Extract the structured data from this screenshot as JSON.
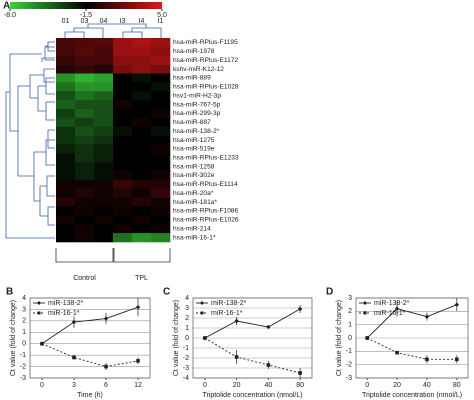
{
  "chart_data": [
    {
      "type": "heatmap",
      "panel": "A",
      "columns": [
        "01",
        "03",
        "04",
        "I3",
        "I4",
        "I1"
      ],
      "rows": [
        "hsa-miR-RPlus-F1195",
        "hsa-miR-1978",
        "hsa-miR-RPlus-E1172",
        "kshv-miR-K12-12",
        "hsa-miR-889",
        "hsa-miR-RPlus-E1028",
        "hsv1-miR-H2-3p",
        "hsa-miR-767-5p",
        "hsa-miR-299-3p",
        "hsa-miR-887",
        "hsa-miR-138-2*",
        "hsa-miR-1275",
        "hsa-miR-519e",
        "hsa-miR-RPlus-E1233",
        "hsa-miR-1258",
        "hsa-miR-302e",
        "hsa-miR-RPlus-E1114",
        "hsa-miR-20a*",
        "hsa-miR-181a*",
        "hsa-miR-RPlus-F1086",
        "hsa-miR-RPlus-E1026",
        "hsa-miR-214",
        "hsa-miR-16-1*"
      ],
      "values": [
        [
          0.5,
          0.8,
          1,
          3,
          3.5,
          3
        ],
        [
          0.5,
          1,
          0.5,
          3,
          3,
          2.5
        ],
        [
          0,
          0.5,
          0.5,
          2.5,
          2.5,
          3
        ],
        [
          -0.5,
          0,
          -0.5,
          2,
          2.5,
          2
        ],
        [
          -6,
          -7,
          -6.5,
          -1.5,
          -2,
          -1.5
        ],
        [
          -5,
          -6,
          -6,
          -1.5,
          -1.5,
          -2
        ],
        [
          -4,
          -5,
          -4.5,
          -1.5,
          -2,
          -1.5
        ],
        [
          -4.5,
          -4,
          -4,
          -1,
          -1.5,
          -1.5
        ],
        [
          -3.5,
          -4.5,
          -4,
          -1.5,
          -1.5,
          -1
        ],
        [
          -4,
          -3.5,
          -4,
          -1.5,
          -1,
          -1.5
        ],
        [
          -3,
          -4,
          -3.5,
          -2,
          -1.5,
          -2
        ],
        [
          -3,
          -3.5,
          -3,
          -1.5,
          -1.5,
          -1.5
        ],
        [
          -2.5,
          -3,
          -2.5,
          -1.5,
          -1.5,
          -1
        ],
        [
          -2,
          -3,
          -2.5,
          -1.5,
          -1.5,
          -1.5
        ],
        [
          -2,
          -2.5,
          -2,
          -1.5,
          -1.5,
          -1.5
        ],
        [
          -2,
          -2.5,
          -2,
          -1,
          -1.5,
          -1
        ],
        [
          -1,
          -1,
          -1,
          0,
          -0.5,
          -0.5
        ],
        [
          -1,
          -0.5,
          -1,
          -0.5,
          -1,
          0
        ],
        [
          -0.5,
          -1,
          -1,
          -1,
          -0.5,
          -1
        ],
        [
          -1.5,
          -1,
          -1.5,
          -1,
          -1.5,
          -1
        ],
        [
          -1,
          -1.5,
          -1,
          -1.5,
          -1,
          -1.5
        ],
        [
          -1.5,
          -1,
          -1.5,
          -1,
          -1.5,
          -1
        ],
        [
          -1.5,
          -1,
          -1.5,
          -5,
          -6,
          -5.5
        ]
      ],
      "clim": [
        -8,
        5
      ],
      "colormap": [
        "#3ad13a",
        "#000000",
        "#e01818"
      ],
      "colorbar_ticks": [
        {
          "value": -8,
          "label": "-8.0"
        },
        -1.5,
        {
          "value": 5,
          "label": "5.0"
        }
      ],
      "groups": [
        "Control",
        "TPL"
      ]
    },
    {
      "type": "line",
      "panel": "B",
      "x_label": "Time (h)",
      "y_label": "Ct value (fold of change)",
      "categories": [
        "0",
        "3",
        "6",
        "12"
      ],
      "ylim": [
        -3,
        4
      ],
      "yticks": [
        -3,
        -2,
        -1,
        0,
        1,
        2,
        3,
        4
      ],
      "grid": true,
      "legend": "upper left",
      "series": [
        {
          "name": "miR-138-2*",
          "color": "#222222",
          "style": "solid",
          "values": [
            0,
            1.9,
            2.2,
            3.2
          ],
          "errors": [
            0,
            0.5,
            0.5,
            0.8
          ]
        },
        {
          "name": "miR-16-1*",
          "color": "#222222",
          "style": "dashed",
          "values": [
            0,
            -1.2,
            -2.0,
            -1.5
          ],
          "errors": [
            0,
            0.2,
            0.3,
            0.3
          ]
        }
      ]
    },
    {
      "type": "line",
      "panel": "C",
      "x_label": "Triptolide concentration (nmol/L)",
      "y_label": "Ct value (fold of change)",
      "categories": [
        "0",
        "20",
        "40",
        "80"
      ],
      "ylim": [
        -4,
        4
      ],
      "yticks": [
        -4,
        -3,
        -2,
        -1,
        0,
        1,
        2,
        3,
        4
      ],
      "grid": true,
      "legend": "upper left",
      "series": [
        {
          "name": "miR-138-2*",
          "color": "#222222",
          "style": "solid",
          "values": [
            0,
            1.7,
            1.1,
            2.9
          ],
          "errors": [
            0,
            0.4,
            0,
            0.4
          ]
        },
        {
          "name": "miR-16-1*",
          "color": "#222222",
          "style": "dashed",
          "values": [
            0,
            -1.9,
            -2.7,
            -3.5
          ],
          "errors": [
            0,
            0.7,
            0.4,
            0.5
          ]
        }
      ]
    },
    {
      "type": "line",
      "panel": "D",
      "x_label": "Triptolide concentration (nmol/L)",
      "y_label": "Ct value (fold of change)",
      "categories": [
        "0",
        "20",
        "40",
        "80"
      ],
      "ylim": [
        -3,
        3
      ],
      "yticks": [
        -3,
        -2,
        -1,
        0,
        1,
        2,
        3
      ],
      "grid": true,
      "legend": "upper left",
      "series": [
        {
          "name": "miR-138-2*",
          "color": "#222222",
          "style": "solid",
          "values": [
            0,
            2.2,
            1.6,
            2.5
          ],
          "errors": [
            0,
            0.6,
            0.3,
            0.5
          ]
        },
        {
          "name": "miR-16-1*",
          "color": "#222222",
          "style": "dashed",
          "values": [
            0,
            -1.1,
            -1.6,
            -1.6
          ],
          "errors": [
            0,
            0.1,
            0.3,
            0.3
          ]
        }
      ]
    }
  ]
}
